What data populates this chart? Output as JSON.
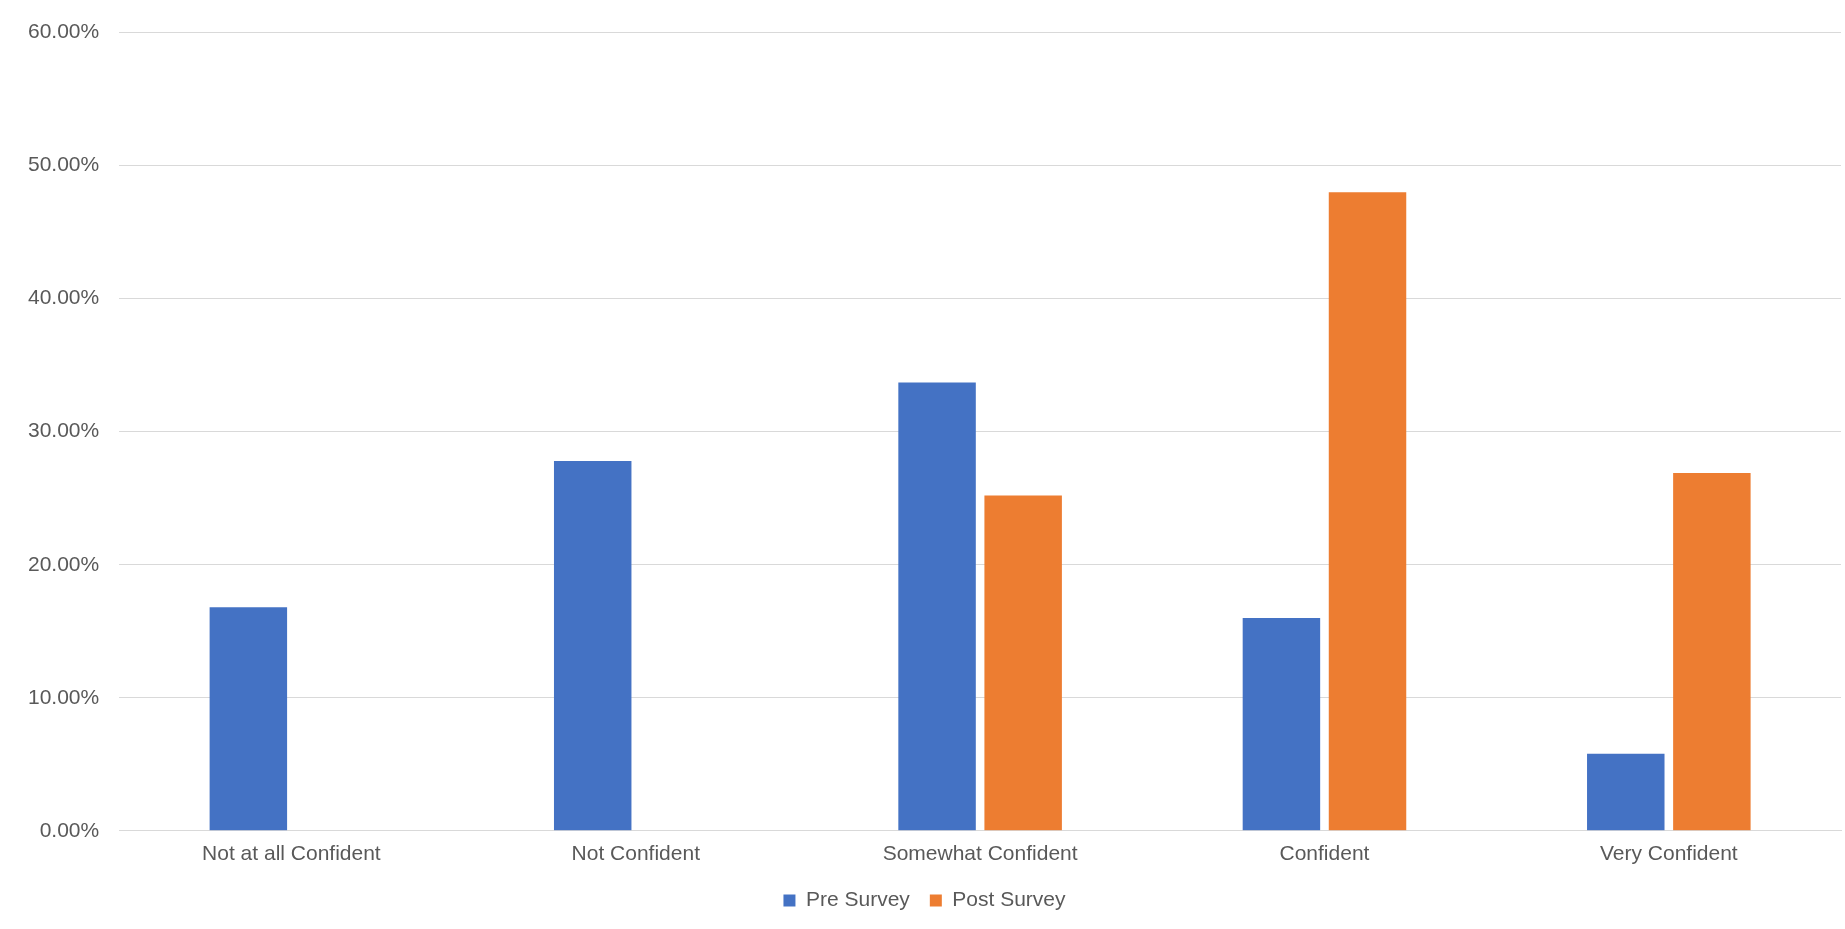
{
  "chart_data": {
    "type": "bar",
    "categories": [
      "Not at all Confident",
      "Not Confident",
      "Somewhat Confident",
      "Confident",
      "Very Confident"
    ],
    "series": [
      {
        "name": "Pre Survey",
        "color": "#4472c4",
        "values": [
          16.8,
          27.8,
          33.7,
          16.0,
          5.8
        ]
      },
      {
        "name": "Post Survey",
        "color": "#ed7d31",
        "values": [
          0,
          0,
          25.2,
          48.0,
          26.9
        ]
      }
    ],
    "ylim": [
      0,
      60
    ],
    "yticks": [
      {
        "value": 0,
        "label": "0.00%"
      },
      {
        "value": 10,
        "label": "10.00%"
      },
      {
        "value": 20,
        "label": "20.00%"
      },
      {
        "value": 30,
        "label": "30.00%"
      },
      {
        "value": 40,
        "label": "40.00%"
      },
      {
        "value": 50,
        "label": "50.00%"
      },
      {
        "value": 60,
        "label": "60.00%"
      }
    ],
    "grid": "y",
    "legend": "bottom"
  }
}
